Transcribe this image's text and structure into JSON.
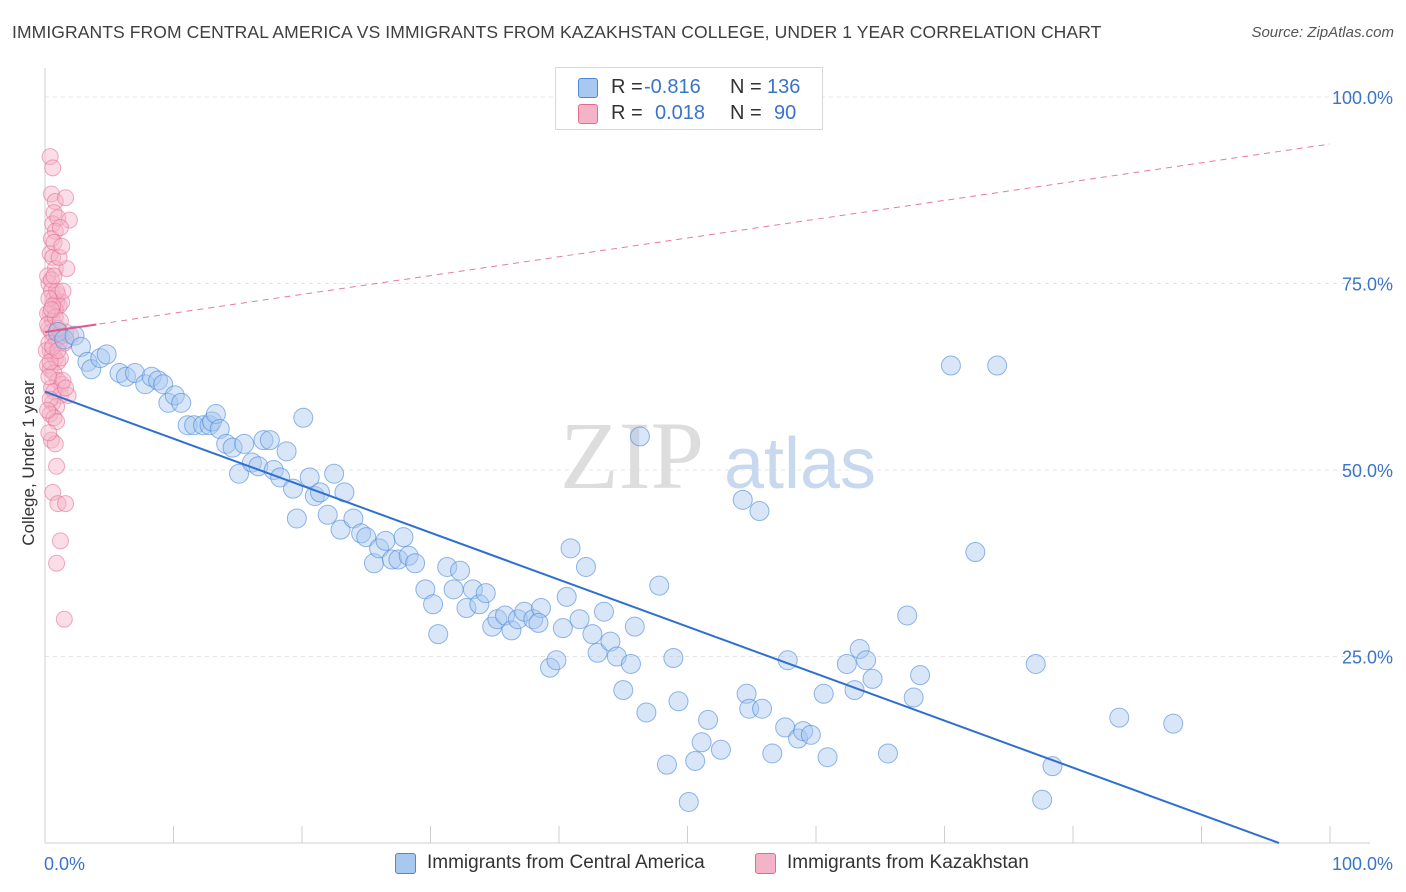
{
  "header": {
    "title": "IMMIGRANTS FROM CENTRAL AMERICA VS IMMIGRANTS FROM KAZAKHSTAN COLLEGE, UNDER 1 YEAR CORRELATION CHART",
    "source": "Source: ZipAtlas.com"
  },
  "watermark": {
    "part1": "ZIP",
    "part2": "atlas"
  },
  "legend_top": {
    "rows": [
      {
        "r_label": "R =",
        "r_value": "-0.816",
        "n_label": "N =",
        "n_value": "136"
      },
      {
        "r_label": "R =",
        "r_value": "0.018",
        "n_label": "N =",
        "n_value": "90"
      }
    ]
  },
  "legend_bottom": {
    "items": [
      {
        "label": "Immigrants from Central America"
      },
      {
        "label": "Immigrants from Kazakhstan"
      }
    ]
  },
  "colors": {
    "blue_fill": "#a8c8f0",
    "blue_stroke": "#4a88d8",
    "blue_line": "#2f6fd0",
    "pink_fill": "#f5b3c8",
    "pink_stroke": "#e46a91",
    "pink_line": "#e05a86",
    "axis_text": "#3a74c9"
  },
  "chart_data": {
    "type": "scatter",
    "title": "IMMIGRANTS FROM CENTRAL AMERICA VS IMMIGRANTS FROM KAZAKHSTAN COLLEGE, UNDER 1 YEAR CORRELATION CHART",
    "xlabel": "",
    "ylabel": "College, Under 1 year",
    "xlim": [
      0,
      100
    ],
    "ylim": [
      0,
      100
    ],
    "x_tick_labels": [
      "0.0%",
      "100.0%"
    ],
    "y_tick_labels": [
      "25.0%",
      "50.0%",
      "75.0%",
      "100.0%"
    ],
    "y_ticks": [
      25,
      50,
      75,
      100
    ],
    "grid": true,
    "legend_position": "bottom",
    "series": [
      {
        "name": "Immigrants from Central America",
        "color": "#a8c8f0",
        "regression": {
          "x": [
            0,
            100
          ],
          "y": [
            60.5,
            -2.5
          ],
          "style": "solid"
        },
        "points": [
          [
            1.0,
            68.5
          ],
          [
            1.5,
            67.5
          ],
          [
            2.3,
            68
          ],
          [
            2.8,
            66.5
          ],
          [
            3.3,
            64.5
          ],
          [
            3.6,
            63.5
          ],
          [
            4.3,
            65
          ],
          [
            4.8,
            65.5
          ],
          [
            5.8,
            63
          ],
          [
            6.3,
            62.5
          ],
          [
            7.0,
            63
          ],
          [
            7.8,
            61.5
          ],
          [
            8.3,
            62.5
          ],
          [
            8.8,
            62
          ],
          [
            9.2,
            61.5
          ],
          [
            9.6,
            59
          ],
          [
            10.1,
            60
          ],
          [
            10.6,
            59
          ],
          [
            11.1,
            56
          ],
          [
            11.6,
            56
          ],
          [
            12.3,
            56
          ],
          [
            12.8,
            56
          ],
          [
            13.0,
            56.5
          ],
          [
            13.3,
            57.5
          ],
          [
            13.6,
            55.5
          ],
          [
            14.1,
            53.5
          ],
          [
            14.6,
            53
          ],
          [
            15.1,
            49.5
          ],
          [
            15.5,
            53.5
          ],
          [
            16.1,
            51
          ],
          [
            16.6,
            50.5
          ],
          [
            17.0,
            54
          ],
          [
            17.5,
            54
          ],
          [
            17.8,
            50
          ],
          [
            18.3,
            49
          ],
          [
            18.8,
            52.5
          ],
          [
            19.3,
            47.5
          ],
          [
            19.6,
            43.5
          ],
          [
            20.1,
            57
          ],
          [
            20.6,
            49
          ],
          [
            21.0,
            46.5
          ],
          [
            21.4,
            47
          ],
          [
            22.0,
            44
          ],
          [
            22.5,
            49.5
          ],
          [
            23.0,
            42
          ],
          [
            23.3,
            47
          ],
          [
            24.0,
            43.5
          ],
          [
            24.6,
            41.5
          ],
          [
            25.0,
            41
          ],
          [
            25.6,
            37.5
          ],
          [
            26.0,
            39.5
          ],
          [
            26.5,
            40.5
          ],
          [
            27.0,
            38
          ],
          [
            27.5,
            38
          ],
          [
            27.9,
            41
          ],
          [
            28.3,
            38.5
          ],
          [
            28.8,
            37.5
          ],
          [
            29.6,
            34
          ],
          [
            30.2,
            32
          ],
          [
            30.6,
            28
          ],
          [
            31.3,
            37
          ],
          [
            31.8,
            34
          ],
          [
            32.3,
            36.5
          ],
          [
            32.8,
            31.5
          ],
          [
            33.3,
            34
          ],
          [
            33.8,
            32
          ],
          [
            34.3,
            33.5
          ],
          [
            34.8,
            29
          ],
          [
            35.2,
            30
          ],
          [
            35.8,
            30.5
          ],
          [
            36.3,
            28.5
          ],
          [
            36.8,
            30
          ],
          [
            37.3,
            31
          ],
          [
            38.0,
            30
          ],
          [
            38.6,
            31.5
          ],
          [
            38.4,
            29.5
          ],
          [
            39.3,
            23.5
          ],
          [
            39.8,
            24.5
          ],
          [
            40.3,
            28.8
          ],
          [
            40.6,
            33
          ],
          [
            40.9,
            39.5
          ],
          [
            41.6,
            30
          ],
          [
            42.1,
            37
          ],
          [
            42.6,
            28
          ],
          [
            43.0,
            25.5
          ],
          [
            43.5,
            31
          ],
          [
            44.0,
            27
          ],
          [
            44.5,
            25
          ],
          [
            45.0,
            20.5
          ],
          [
            45.6,
            24
          ],
          [
            45.9,
            29
          ],
          [
            46.3,
            54.5
          ],
          [
            46.8,
            17.5
          ],
          [
            47.8,
            34.5
          ],
          [
            48.4,
            10.5
          ],
          [
            48.9,
            24.8
          ],
          [
            49.3,
            19
          ],
          [
            50.1,
            5.5
          ],
          [
            50.6,
            11
          ],
          [
            51.1,
            13.5
          ],
          [
            51.6,
            16.5
          ],
          [
            52.6,
            12.5
          ],
          [
            54.3,
            46
          ],
          [
            54.6,
            20
          ],
          [
            54.8,
            18
          ],
          [
            55.6,
            44.5
          ],
          [
            55.8,
            18
          ],
          [
            56.6,
            12
          ],
          [
            57.6,
            15.5
          ],
          [
            57.8,
            24.5
          ],
          [
            58.6,
            14
          ],
          [
            59.0,
            15
          ],
          [
            59.6,
            14.5
          ],
          [
            60.6,
            20
          ],
          [
            60.9,
            11.5
          ],
          [
            62.4,
            24
          ],
          [
            63.0,
            20.5
          ],
          [
            63.4,
            26
          ],
          [
            63.9,
            24.5
          ],
          [
            64.4,
            22
          ],
          [
            65.6,
            12
          ],
          [
            67.1,
            30.5
          ],
          [
            67.6,
            19.5
          ],
          [
            68.1,
            22.5
          ],
          [
            70.5,
            64
          ],
          [
            74.1,
            64
          ],
          [
            72.4,
            39
          ],
          [
            77.1,
            24
          ],
          [
            77.6,
            5.8
          ],
          [
            78.4,
            10.3
          ],
          [
            83.6,
            16.8
          ],
          [
            87.8,
            16
          ]
        ]
      },
      {
        "name": "Immigrants from Kazakhstan",
        "color": "#f5b3c8",
        "regression": {
          "x": [
            0,
            100
          ],
          "y": [
            68.5,
            93.7
          ],
          "style": "dashed"
        },
        "points": [
          [
            0.4,
            92
          ],
          [
            0.6,
            90.5
          ],
          [
            0.5,
            87
          ],
          [
            0.8,
            86
          ],
          [
            0.7,
            84.5
          ],
          [
            0.6,
            83
          ],
          [
            1.0,
            83.8
          ],
          [
            0.8,
            82
          ],
          [
            0.5,
            81
          ],
          [
            1.6,
            86.5
          ],
          [
            1.9,
            83.5
          ],
          [
            0.4,
            79
          ],
          [
            0.6,
            78.5
          ],
          [
            0.8,
            77
          ],
          [
            1.7,
            77
          ],
          [
            0.3,
            75
          ],
          [
            0.5,
            74
          ],
          [
            0.7,
            73
          ],
          [
            0.9,
            72.5
          ],
          [
            1.1,
            72
          ],
          [
            0.4,
            71
          ],
          [
            0.6,
            70
          ],
          [
            0.8,
            71.5
          ],
          [
            1.0,
            73.5
          ],
          [
            1.3,
            72.5
          ],
          [
            0.3,
            69
          ],
          [
            0.5,
            68.5
          ],
          [
            0.7,
            68
          ],
          [
            0.9,
            67.5
          ],
          [
            1.1,
            67
          ],
          [
            1.3,
            68
          ],
          [
            1.5,
            67
          ],
          [
            0.4,
            66
          ],
          [
            0.6,
            65.5
          ],
          [
            0.8,
            65
          ],
          [
            1.0,
            64.5
          ],
          [
            0.2,
            64
          ],
          [
            0.4,
            63.5
          ],
          [
            0.7,
            63
          ],
          [
            1.0,
            62
          ],
          [
            1.3,
            61.5
          ],
          [
            0.5,
            61
          ],
          [
            0.7,
            60.5
          ],
          [
            1.2,
            60
          ],
          [
            1.8,
            60
          ],
          [
            0.6,
            59
          ],
          [
            0.9,
            58.5
          ],
          [
            0.4,
            57.5
          ],
          [
            0.7,
            57
          ],
          [
            0.9,
            56.5
          ],
          [
            0.5,
            54
          ],
          [
            0.8,
            53.5
          ],
          [
            0.9,
            50.5
          ],
          [
            0.6,
            47
          ],
          [
            1.0,
            45.5
          ],
          [
            1.6,
            45.5
          ],
          [
            1.2,
            40.5
          ],
          [
            0.9,
            37.5
          ],
          [
            1.5,
            30
          ],
          [
            0.2,
            76
          ],
          [
            0.3,
            67
          ],
          [
            0.2,
            71
          ],
          [
            0.5,
            75.5
          ],
          [
            0.9,
            74
          ],
          [
            1.4,
            74
          ],
          [
            1.2,
            65
          ],
          [
            1.6,
            68.5
          ],
          [
            2.0,
            68
          ],
          [
            0.3,
            62.5
          ],
          [
            0.4,
            59.5
          ],
          [
            0.1,
            66
          ],
          [
            0.2,
            69.5
          ],
          [
            0.3,
            73
          ],
          [
            0.6,
            72
          ],
          [
            0.8,
            70.5
          ],
          [
            1.0,
            69
          ],
          [
            1.2,
            70
          ],
          [
            0.4,
            64.5
          ],
          [
            0.6,
            66.5
          ],
          [
            1.4,
            62
          ],
          [
            1.6,
            61
          ],
          [
            0.2,
            58
          ],
          [
            0.3,
            55
          ],
          [
            1.1,
            78.5
          ],
          [
            0.7,
            80.5
          ],
          [
            1.3,
            80
          ],
          [
            0.5,
            71.5
          ],
          [
            0.7,
            76
          ],
          [
            1.2,
            82.5
          ],
          [
            1.0,
            66
          ]
        ]
      }
    ]
  }
}
